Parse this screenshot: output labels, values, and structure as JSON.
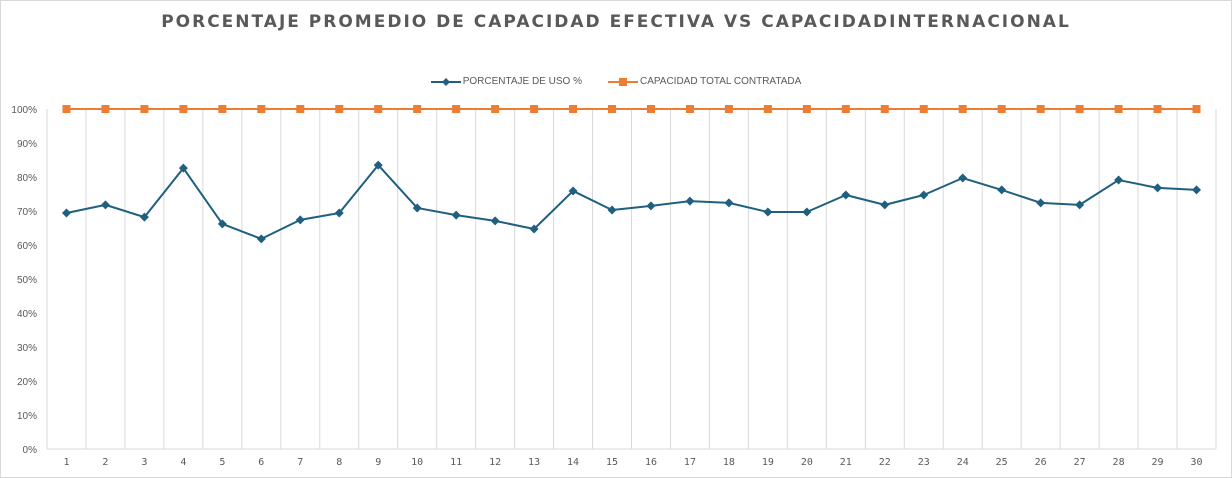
{
  "chart_data": {
    "type": "line",
    "title": "PORCENTAJE PROMEDIO DE CAPACIDAD EFECTIVA VS CAPACIDADINTERNACIONAL",
    "xlabel": "",
    "ylabel": "",
    "ylim": [
      0,
      100
    ],
    "yticks": [
      "0%",
      "10%",
      "20%",
      "30%",
      "40%",
      "50%",
      "60%",
      "70%",
      "80%",
      "90%",
      "100%"
    ],
    "categories": [
      "1",
      "2",
      "3",
      "4",
      "5",
      "6",
      "7",
      "8",
      "9",
      "10",
      "11",
      "12",
      "13",
      "14",
      "15",
      "16",
      "17",
      "18",
      "19",
      "20",
      "21",
      "22",
      "23",
      "24",
      "25",
      "26",
      "27",
      "28",
      "29",
      "30"
    ],
    "grid": "vertical",
    "legend_position": "top",
    "series": [
      {
        "name": "PORCENTAJE DE USO %",
        "color": "#1f5f7f",
        "marker": "diamond",
        "values": [
          69.4,
          71.8,
          68.2,
          82.6,
          66.2,
          61.8,
          67.4,
          69.4,
          83.5,
          70.9,
          68.8,
          67.1,
          64.7,
          75.9,
          70.3,
          71.5,
          72.9,
          72.4,
          69.7,
          69.7,
          74.7,
          71.8,
          74.7,
          79.7,
          76.2,
          72.4,
          71.8,
          79.1,
          76.8,
          76.2
        ]
      },
      {
        "name": "CAPACIDAD TOTAL CONTRATADA",
        "color": "#ed7d31",
        "marker": "square",
        "values": [
          100,
          100,
          100,
          100,
          100,
          100,
          100,
          100,
          100,
          100,
          100,
          100,
          100,
          100,
          100,
          100,
          100,
          100,
          100,
          100,
          100,
          100,
          100,
          100,
          100,
          100,
          100,
          100,
          100,
          100
        ]
      }
    ]
  }
}
